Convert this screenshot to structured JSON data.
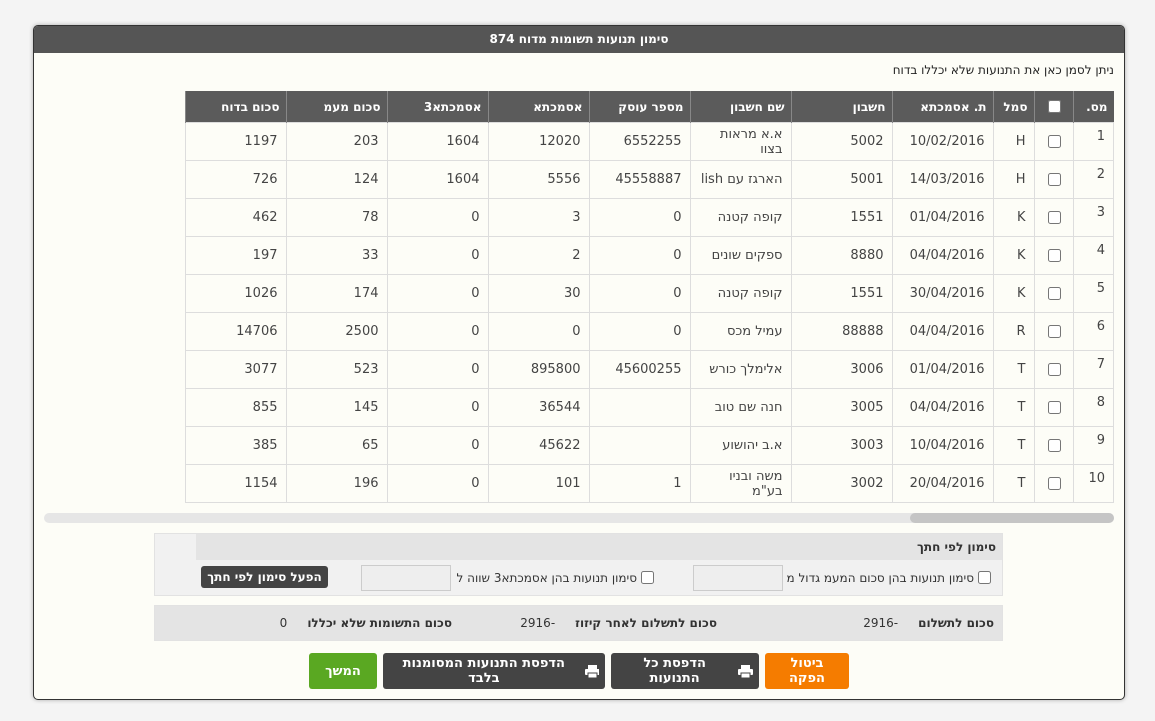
{
  "dialog": {
    "title": "סימון תנועות תשומות מדוח 874",
    "instruction": "ניתן לסמן כאן את התנועות שלא יכללו בדוח"
  },
  "table": {
    "headers": [
      "מס.",
      "סמל",
      "ת. אסמכתא",
      "חשבון",
      "שם חשבון",
      "מספר עוסק",
      "אסמכתא",
      "אסמכתא3",
      "סכום מעמ",
      "סכום בדוח"
    ],
    "rows": [
      [
        "1",
        "H",
        "10/02/2016",
        "5002",
        "א.א מראות בצוו",
        "6552255",
        "12020",
        "1604",
        "203",
        "1197"
      ],
      [
        "2",
        "H",
        "14/03/2016",
        "5001",
        "הארגז עם lish",
        "45558887",
        "5556",
        "1604",
        "124",
        "726"
      ],
      [
        "3",
        "K",
        "01/04/2016",
        "1551",
        "קופה קטנה",
        "0",
        "3",
        "0",
        "78",
        "462"
      ],
      [
        "4",
        "K",
        "04/04/2016",
        "8880",
        "ספקים שונים",
        "0",
        "2",
        "0",
        "33",
        "197"
      ],
      [
        "5",
        "K",
        "30/04/2016",
        "1551",
        "קופה קטנה",
        "0",
        "30",
        "0",
        "174",
        "1026"
      ],
      [
        "6",
        "R",
        "04/04/2016",
        "88888",
        "עמיל מכס",
        "0",
        "0",
        "0",
        "2500",
        "14706"
      ],
      [
        "7",
        "T",
        "01/04/2016",
        "3006",
        "אלימלך כורש",
        "45600255",
        "895800",
        "0",
        "523",
        "3077"
      ],
      [
        "8",
        "T",
        "04/04/2016",
        "3005",
        "חנה שם טוב",
        null,
        "36544",
        "0",
        "145",
        "855"
      ],
      [
        "9",
        "T",
        "10/04/2016",
        "3003",
        "א.ב יהושוע",
        null,
        "45622",
        "0",
        "65",
        "385"
      ],
      [
        "10",
        "T",
        "20/04/2016",
        "3002",
        "משה ובניו בע\"מ",
        "1",
        "101",
        "0",
        "196",
        "1154"
      ]
    ]
  },
  "filter": {
    "title": "סימון לפי חתך",
    "option_vat": "סימון תנועות בהן סכום המעמ גדול מ",
    "option_ref3": "סימון תנועות בהן אסמכתא3 שווה ל",
    "apply_button": "הפעל סימון לפי חתך"
  },
  "summary": {
    "items": [
      {
        "label": "סכום לתשלום",
        "value": "-2916"
      },
      {
        "label": "סכום לתשלום לאחר קיזוז",
        "value": "-2916"
      },
      {
        "label": "סכום התשומות שלא יכללו",
        "value": "0"
      }
    ]
  },
  "buttons": {
    "cancel": "ביטול הפקה",
    "print_all": "הדפסת כל התנועות",
    "print_marked": "הדפסת התנועות המסומנות בלבד",
    "continue": "המשך"
  }
}
